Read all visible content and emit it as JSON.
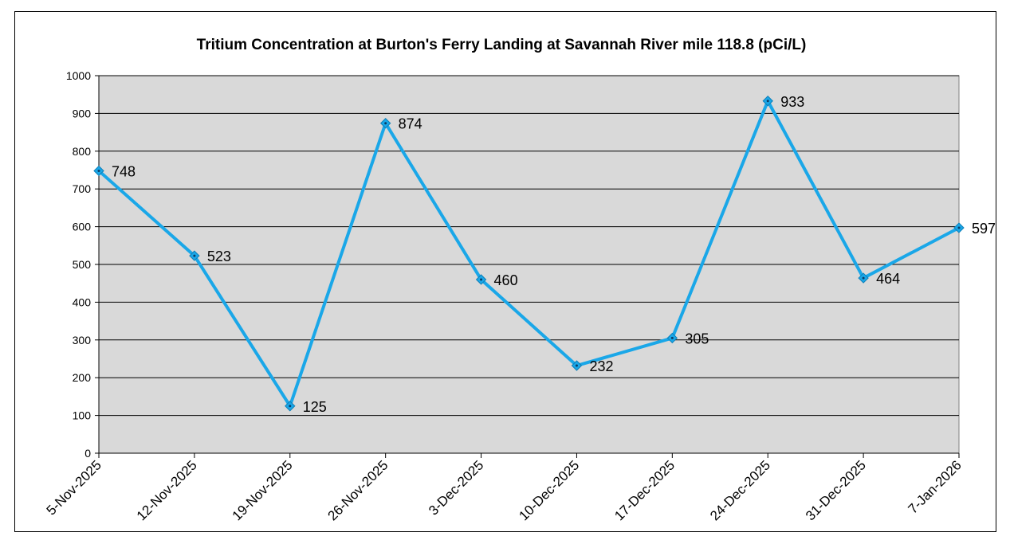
{
  "chart_data": {
    "type": "line",
    "title": "Tritium Concentration at Burton's Ferry Landing at Savannah River mile 118.8 (pCi/L)",
    "xlabel": "",
    "ylabel": "",
    "categories": [
      "5-Nov-2025",
      "12-Nov-2025",
      "19-Nov-2025",
      "26-Nov-2025",
      "3-Dec-2025",
      "10-Dec-2025",
      "17-Dec-2025",
      "24-Dec-2025",
      "31-Dec-2025",
      "7-Jan-2026"
    ],
    "series": [
      {
        "name": "Tritium (pCi/L)",
        "values": [
          748,
          523,
          125,
          874,
          460,
          232,
          305,
          933,
          464,
          597
        ]
      }
    ],
    "ylim": [
      0,
      1000
    ],
    "yticks": [
      0,
      100,
      200,
      300,
      400,
      500,
      600,
      700,
      800,
      900,
      1000
    ],
    "grid": true,
    "legend": "none",
    "data_labels": true,
    "colors": {
      "line": "#1aa7e8",
      "plot_background": "#d9d9d9",
      "gridline": "#000000"
    }
  }
}
